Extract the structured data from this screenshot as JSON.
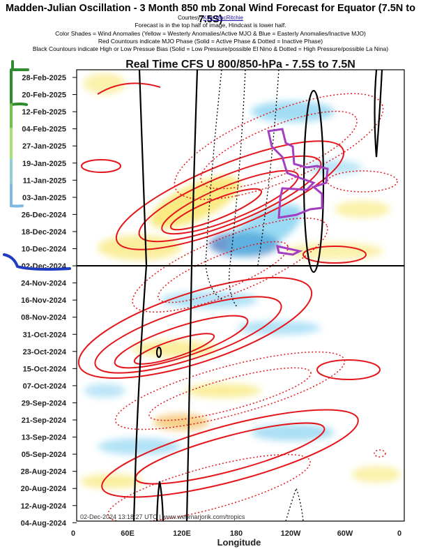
{
  "header": {
    "title": "Madden-Julian Oscillation - 3 Month 850 mb Zonal Wind Forecast for Equator (7.5N to 7.5S)",
    "courtesy_prefix": "Courtesy:",
    "courtesy_link": "Kyle MacRitchie",
    "line1": "Forecast is in the top half of image, Hindcast is lower half.",
    "line2": "Color Shades = Wind Anomalies (Yellow = Westerly Anomalies/Active MJO & Blue = Easterly Anomalies/Inactive MJO)",
    "line3": "Red Countours indicate MJO Phase (Solid = Active Phase & Dotted = Inactive Phase)",
    "line4": "Black Countours indicate High or Low Pressue Bias (Solid = Low Pressure/possible El Nino & Dotted = High Pressure/possible La Nina)"
  },
  "chart_data": {
    "type": "heatmap",
    "title": "Real Time CFS U 800/850-hPa - 7.5S to 7.5N",
    "xlabel": "Longitude",
    "ylabel": "",
    "x_ticks": [
      "0",
      "60E",
      "120E",
      "180",
      "120W",
      "60W",
      "0"
    ],
    "y_ticks": [
      "28-Feb-2025",
      "20-Feb-2025",
      "12-Feb-2025",
      "04-Feb-2025",
      "27-Jan-2025",
      "19-Jan-2025",
      "11-Jan-2025",
      "03-Jan-2025",
      "26-Dec-2024",
      "18-Dec-2024",
      "10-Dec-2024",
      "02-Dec-2024",
      "24-Nov-2024",
      "16-Nov-2024",
      "08-Nov-2024",
      "31-Oct-2024",
      "23-Oct-2024",
      "15-Oct-2024",
      "07-Oct-2024",
      "29-Sep-2024",
      "21-Sep-2024",
      "13-Sep-2024",
      "05-Sep-2024",
      "28-Aug-2024",
      "20-Aug-2024",
      "12-Aug-2024",
      "04-Aug-2024"
    ],
    "forecast_start": "02-Dec-2024",
    "stamp": "02-Dec-2024 13:18:27 UTC | www.webmarjorik.com/tropics",
    "colors": {
      "westerly": "#f4df3a",
      "easterly": "#35b4e8",
      "mjo_contour": "#e4161b",
      "pressure_contour": "#000000",
      "annotation": "#a23fc1"
    }
  }
}
